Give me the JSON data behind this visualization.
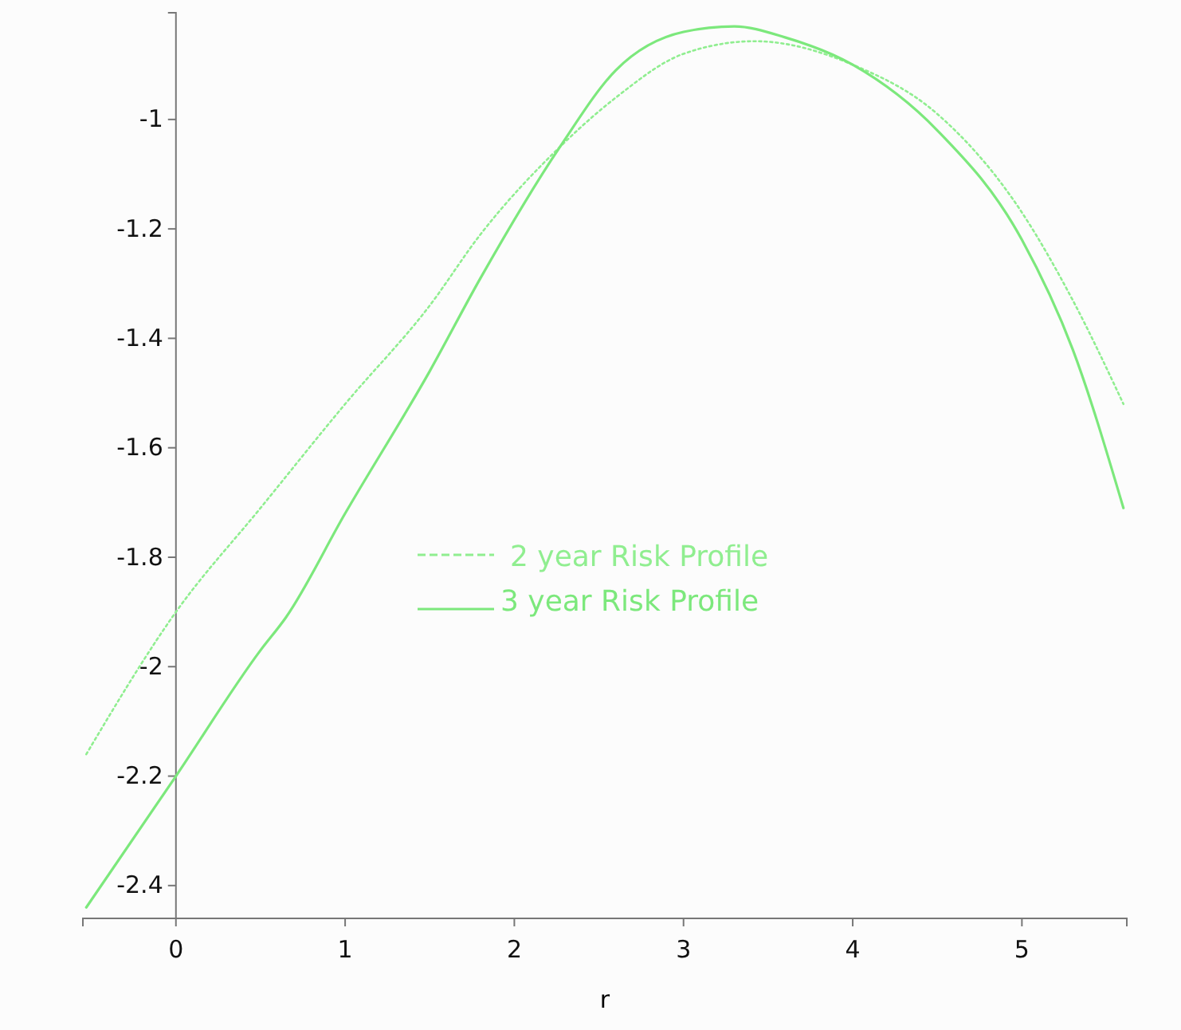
{
  "chart_data": {
    "type": "line",
    "xlabel": "r",
    "xlim": [
      -0.55,
      5.62
    ],
    "ylim": [
      -2.46,
      -0.805
    ],
    "xticks": [
      0,
      1,
      2,
      3,
      4,
      5
    ],
    "yticks": [
      -2.4,
      -2.2,
      -2,
      -1.8,
      -1.6,
      -1.4,
      -1.2,
      -1
    ],
    "grid": false,
    "legend": "center",
    "marker": "none",
    "series": [
      {
        "name": "2 year Risk Profile",
        "color": "#90ee90",
        "line_style": "dotted",
        "x": [
          -0.53,
          0,
          0.5,
          1,
          1.5,
          1.8,
          2.27,
          2.6,
          3,
          3.42,
          4,
          4.5,
          5,
          5.3,
          5.6
        ],
        "values": [
          -2.16,
          -1.9,
          -1.71,
          -1.52,
          -1.34,
          -1.21,
          -1.05,
          -0.96,
          -0.88,
          -0.857,
          -0.9,
          -0.99,
          -1.17,
          -1.33,
          -1.52
        ]
      },
      {
        "name": "3 year Risk Profile",
        "color": "#7ce87c",
        "line_style": "solid",
        "x": [
          -0.53,
          0,
          0.5,
          0.65,
          1,
          1.5,
          1.8,
          2.27,
          2.6,
          3,
          3.3,
          3.6,
          4,
          4.5,
          5,
          5.3,
          5.6
        ],
        "values": [
          -2.44,
          -2.2,
          -1.97,
          -1.91,
          -1.72,
          -1.46,
          -1.29,
          -1.05,
          -0.91,
          -0.84,
          -0.83,
          -0.85,
          -0.9,
          -1.02,
          -1.22,
          -1.42,
          -1.71
        ]
      }
    ]
  }
}
